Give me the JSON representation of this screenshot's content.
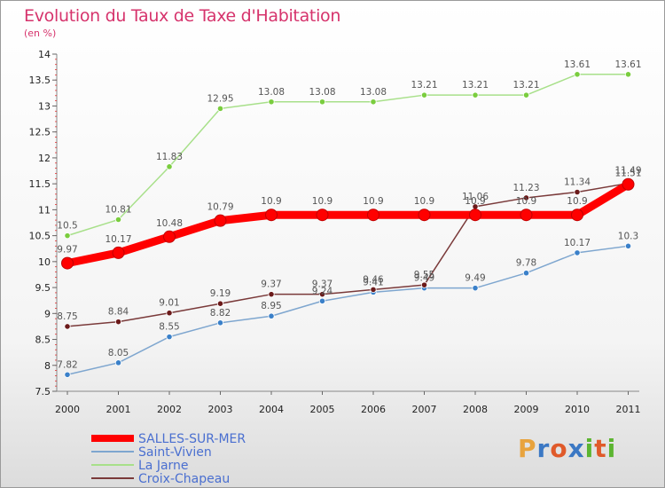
{
  "header": {
    "title": "Evolution du Taux de Taxe d'Habitation",
    "subtitle": "(en %)"
  },
  "brand": {
    "letters": [
      "P",
      "r",
      "o",
      "x",
      "i",
      "t",
      "i"
    ],
    "colors": [
      "#e8a33d",
      "#3b78c4",
      "#e05a2a",
      "#3b78c4",
      "#5cb531",
      "#e05a2a",
      "#5cb531"
    ]
  },
  "chart_data": {
    "type": "line",
    "title": "Evolution du Taux de Taxe d'Habitation",
    "subtitle": "(en %)",
    "xlabel": "",
    "ylabel": "",
    "x": [
      "2000",
      "2001",
      "2002",
      "2003",
      "2004",
      "2005",
      "2006",
      "2007",
      "2008",
      "2009",
      "2010",
      "2011"
    ],
    "ylim": [
      7.5,
      14
    ],
    "yticks": [
      7.5,
      8,
      8.5,
      9,
      9.5,
      10,
      10.5,
      11,
      11.5,
      12,
      12.5,
      13,
      13.5,
      14
    ],
    "grid": false,
    "legend_position": "bottom-left",
    "series": [
      {
        "name": "SALLES-SUR-MER",
        "color": "#ff0000",
        "point_color": "#ff0000",
        "thick": true,
        "values": [
          9.97,
          10.17,
          10.48,
          10.79,
          10.9,
          10.9,
          10.9,
          10.9,
          10.9,
          10.9,
          10.9,
          11.49
        ]
      },
      {
        "name": "Saint-Vivien",
        "color": "#7ea6cf",
        "point_color": "#3a80c9",
        "thick": false,
        "values": [
          7.82,
          8.05,
          8.55,
          8.82,
          8.95,
          9.24,
          9.41,
          9.49,
          9.49,
          9.78,
          10.17,
          10.3
        ]
      },
      {
        "name": "La Jarne",
        "color": "#a8e08a",
        "point_color": "#7acd3e",
        "thick": false,
        "values": [
          10.5,
          10.81,
          11.83,
          12.95,
          13.08,
          13.08,
          13.08,
          13.21,
          13.21,
          13.21,
          13.61,
          13.61
        ]
      },
      {
        "name": "Croix-Chapeau",
        "color": "#7a3a3a",
        "point_color": "#6b1a1a",
        "thick": false,
        "values": [
          8.75,
          8.84,
          9.01,
          9.19,
          9.37,
          9.37,
          9.46,
          9.55,
          11.06,
          11.23,
          11.34,
          11.51
        ]
      }
    ],
    "value_labels": [
      [
        "9.97",
        "10.17",
        "10.48",
        "10.79",
        "10.9",
        "10.9",
        "10.9",
        "10.9",
        "10.9",
        "10.9",
        "10.9",
        "11.49"
      ],
      [
        "7.82",
        "8.05",
        "8.55",
        "8.82",
        "8.95",
        "9.24",
        "9.41",
        "9.49",
        "9.49",
        "9.78",
        "10.17",
        "10.3"
      ],
      [
        "10.5",
        "10.81",
        "11.83",
        "12.95",
        "13.08",
        "13.08",
        "13.08",
        "13.21",
        "13.21",
        "13.21",
        "13.61",
        "13.61"
      ],
      [
        "8.75",
        "8.84",
        "9.01",
        "9.19",
        "9.37",
        "9.37",
        "9.46",
        "9.55",
        "11.06",
        "11.23",
        "11.34",
        "11.51"
      ]
    ]
  }
}
